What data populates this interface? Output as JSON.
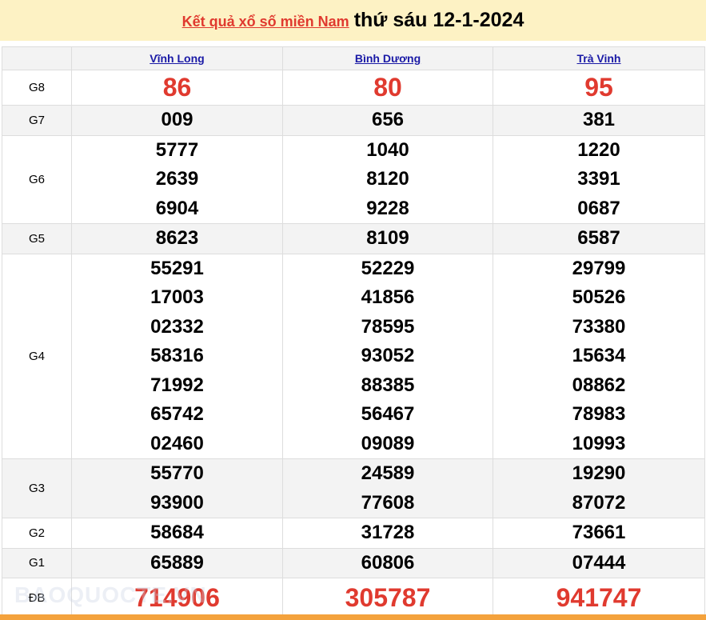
{
  "header": {
    "link": "Kết quả xổ số miền Nam",
    "date": "thứ sáu 12-1-2024"
  },
  "provinces": [
    "Vĩnh Long",
    "Bình Dương",
    "Trà Vinh"
  ],
  "rows": [
    {
      "label": "G8",
      "values": [
        [
          "86"
        ],
        [
          "80"
        ],
        [
          "95"
        ]
      ],
      "highlight": true
    },
    {
      "label": "G7",
      "values": [
        [
          "009"
        ],
        [
          "656"
        ],
        [
          "381"
        ]
      ]
    },
    {
      "label": "G6",
      "values": [
        [
          "5777",
          "2639",
          "6904"
        ],
        [
          "1040",
          "8120",
          "9228"
        ],
        [
          "1220",
          "3391",
          "0687"
        ]
      ]
    },
    {
      "label": "G5",
      "values": [
        [
          "8623"
        ],
        [
          "8109"
        ],
        [
          "6587"
        ]
      ]
    },
    {
      "label": "G4",
      "values": [
        [
          "55291",
          "17003",
          "02332",
          "58316",
          "71992",
          "65742",
          "02460"
        ],
        [
          "52229",
          "41856",
          "78595",
          "93052",
          "88385",
          "56467",
          "09089"
        ],
        [
          "29799",
          "50526",
          "73380",
          "15634",
          "08862",
          "78983",
          "10993"
        ]
      ]
    },
    {
      "label": "G3",
      "values": [
        [
          "55770",
          "93900"
        ],
        [
          "24589",
          "77608"
        ],
        [
          "19290",
          "87072"
        ]
      ]
    },
    {
      "label": "G2",
      "values": [
        [
          "58684"
        ],
        [
          "31728"
        ],
        [
          "73661"
        ]
      ]
    },
    {
      "label": "G1",
      "values": [
        [
          "65889"
        ],
        [
          "60806"
        ],
        [
          "07444"
        ]
      ]
    },
    {
      "label": "ĐB",
      "values": [
        [
          "714906"
        ],
        [
          "305787"
        ],
        [
          "941747"
        ]
      ],
      "highlight": true
    }
  ],
  "watermark": "BAOQUOCTE.VN",
  "colors": {
    "red": "#e03a2f",
    "header_bg": "#fdf2c4",
    "footer_bar": "#f4a23c"
  }
}
